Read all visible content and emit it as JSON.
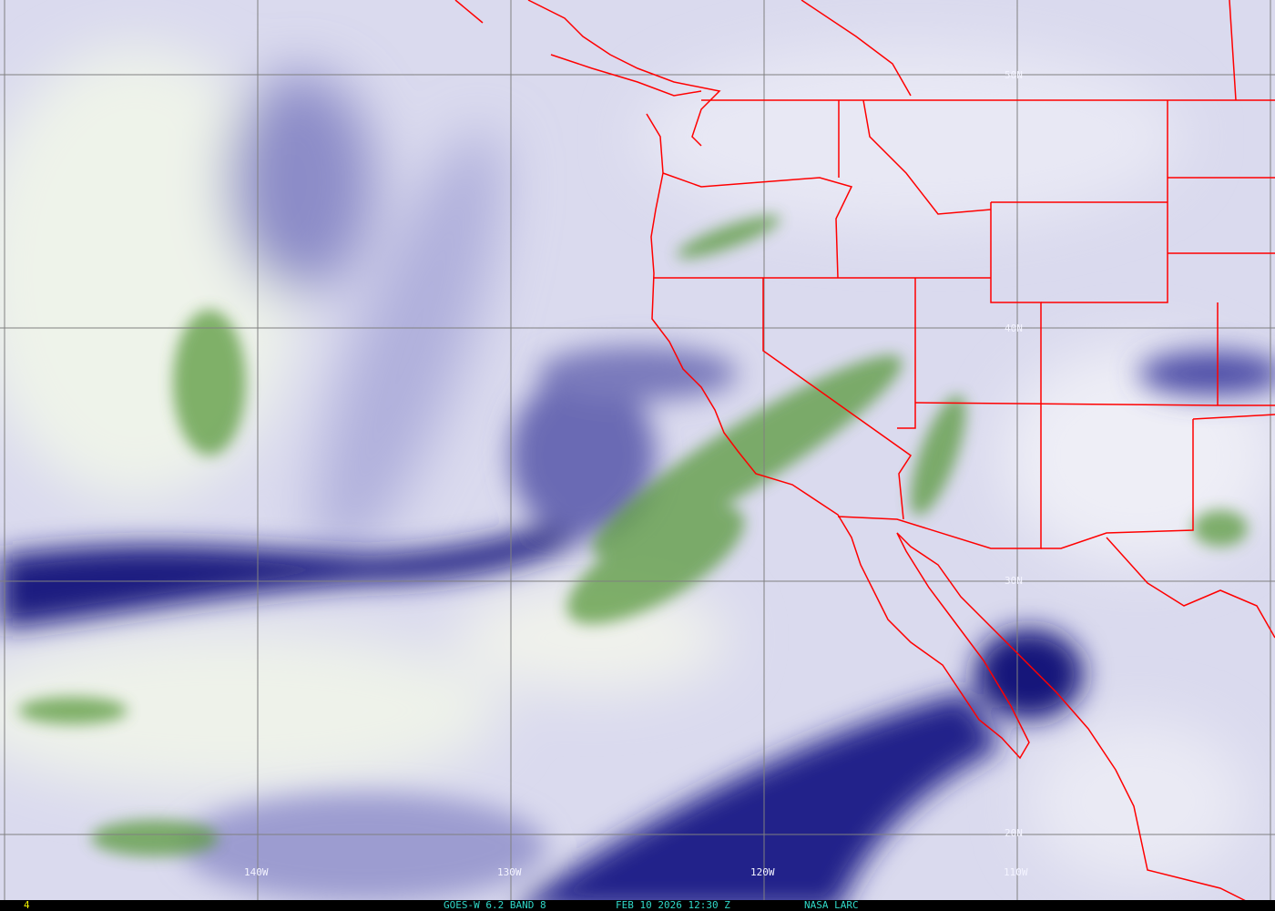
{
  "image": {
    "satellite_label": "GOES-W 6.2 BAND 8",
    "timestamp": "FEB 10 2026 12:30 Z",
    "credit": "NASA LARC",
    "frame_number": "4",
    "latitude_labels": [
      "50N",
      "40N",
      "30N",
      "20N"
    ],
    "longitude_labels": [
      "140W",
      "130W",
      "120W",
      "110W"
    ],
    "colors": {
      "border": "#ff0000",
      "grid": "#808080",
      "label_text": "#30d8c8",
      "frame_text": "#f0f000",
      "dry": "#10106e",
      "moist": "#4a8a30"
    }
  }
}
